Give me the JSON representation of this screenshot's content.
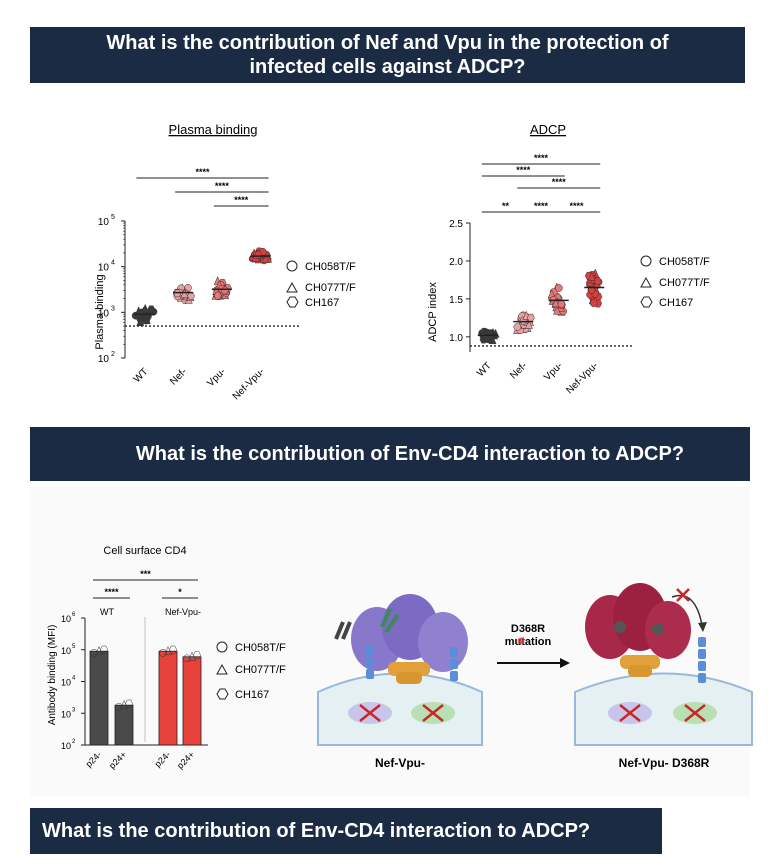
{
  "banners": {
    "q1_line1": "What is the contribution of Nef and Vpu in the protection of",
    "q1_line2": "infected cells against ADCP?",
    "q2": "What is the contribution of Env-CD4 interaction to ADCP?",
    "q3": "What is the contribution of Env-CD4 interaction to ADCP?"
  },
  "legend": [
    "CH058T/F",
    "CH077T/F",
    "CH167"
  ],
  "chart_data": [
    {
      "type": "scatter",
      "title": "Plasma binding",
      "ylabel": "Plasma binding",
      "scale": "log",
      "ylim_exp": [
        2,
        5
      ],
      "yticks": [
        {
          "exp": "2"
        },
        {
          "exp": "3"
        },
        {
          "exp": "4"
        },
        {
          "exp": "5"
        }
      ],
      "categories": [
        "WT",
        "Nef-",
        "Vpu-",
        "Nef-Vpu-"
      ],
      "medians": [
        900,
        2700,
        3200,
        17000
      ],
      "series_colors": [
        "#3a3a3a",
        "#e8a0a0",
        "#ea7575",
        "#d84040"
      ],
      "threshold": 500,
      "significance": [
        {
          "label": "****",
          "from": 0,
          "to": 3
        },
        {
          "label": "****",
          "from": 1,
          "to": 3
        },
        {
          "label": "****",
          "from": 2,
          "to": 3
        }
      ]
    },
    {
      "type": "scatter",
      "title": "ADCP",
      "ylabel": "ADCP index",
      "scale": "linear",
      "ylim": [
        0.8,
        2.5
      ],
      "yticks": [
        "1.0",
        "1.5",
        "2.0",
        "2.5"
      ],
      "categories": [
        "WT",
        "Nef-",
        "Vpu-",
        "Nef-Vpu-"
      ],
      "medians": [
        1.02,
        1.2,
        1.48,
        1.65
      ],
      "series_colors": [
        "#3a3a3a",
        "#e8a0a0",
        "#ea7575",
        "#d84040"
      ],
      "threshold": 0.88,
      "significance": [
        {
          "label": "****",
          "from": 0,
          "to": 3
        },
        {
          "label": "****",
          "from": 0,
          "to": 2
        },
        {
          "label": "****",
          "from": 1,
          "to": 3
        },
        {
          "label": "**",
          "from": 0,
          "to": 1
        },
        {
          "label": "****",
          "from": 1,
          "to": 2
        },
        {
          "label": "****",
          "from": 2,
          "to": 3
        }
      ]
    },
    {
      "type": "bar",
      "title": "Cell surface CD4",
      "ylabel": "Antibody binding (MFI)",
      "scale": "log",
      "ylim_exp": [
        2,
        6
      ],
      "yticks": [
        {
          "exp": "2"
        },
        {
          "exp": "3"
        },
        {
          "exp": "4"
        },
        {
          "exp": "5"
        },
        {
          "exp": "6"
        }
      ],
      "groups": [
        "WT",
        "Nef-Vpu-"
      ],
      "categories": [
        "p24-",
        "p24+",
        "p24-",
        "p24+"
      ],
      "values": [
        90000,
        1800,
        90000,
        60000
      ],
      "bar_colors": [
        "#4a4a4a",
        "#4a4a4a",
        "#e8423c",
        "#e8423c"
      ],
      "significance": [
        {
          "label": "****",
          "from": 0,
          "to": 1
        },
        {
          "label": "***",
          "from": 0,
          "to": 3
        },
        {
          "label": "*",
          "from": 2,
          "to": 3
        }
      ]
    }
  ],
  "diagram": {
    "mutation_label_line1": "D368R",
    "mutation_label_line2": "mutation",
    "left_caption": "Nef-Vpu-",
    "right_caption": "Nef-Vpu- D368R"
  }
}
